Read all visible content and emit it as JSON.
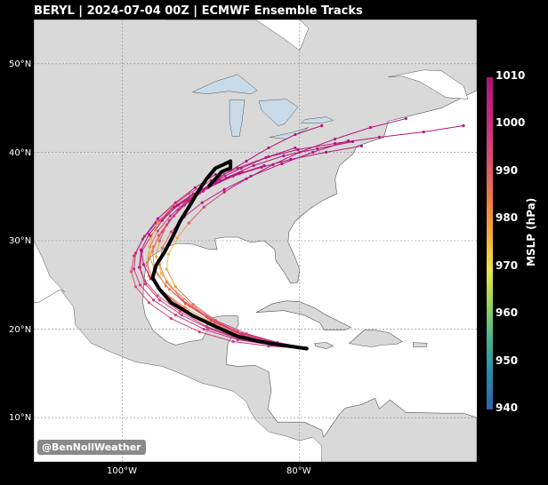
{
  "title": "BERYL | 2024-07-04 00Z | ECMWF Ensemble Tracks",
  "watermark": "@BenNollWeather",
  "lat_labels": [
    "50°N",
    "40°N",
    "30°N",
    "20°N",
    "10°N"
  ],
  "lon_labels": [
    "100°W",
    "80°W"
  ],
  "colorbar": {
    "title": "MSLP (hPa)",
    "ticks": [
      "1010",
      "1000",
      "990",
      "980",
      "970",
      "960",
      "950",
      "940"
    ],
    "min": 940,
    "max": 1010
  },
  "colors": {
    "land": "#d9d9d9",
    "ocean": "#ffffff",
    "border": "#555555",
    "mean_track": "#000000",
    "weak_track": "#b3127a",
    "strong_track": "#f1d04a"
  },
  "map_extent": {
    "lon": [
      -110,
      -60
    ],
    "lat": [
      5,
      55
    ]
  },
  "mean_track": [
    [
      -79.2,
      17.8
    ],
    [
      -82,
      18.2
    ],
    [
      -84.5,
      18.6
    ],
    [
      -87,
      19.2
    ],
    [
      -89.5,
      20.3
    ],
    [
      -92,
      21.5
    ],
    [
      -94.5,
      23
    ],
    [
      -95.8,
      24.5
    ],
    [
      -96.6,
      25.8
    ],
    [
      -96.2,
      27.2
    ],
    [
      -95.2,
      28.8
    ],
    [
      -94.3,
      30.5
    ],
    [
      -93.5,
      32.2
    ],
    [
      -92.5,
      33.8
    ],
    [
      -91.5,
      35.5
    ],
    [
      -90.5,
      37
    ],
    [
      -89.5,
      38.2
    ],
    [
      -88.6,
      38.6
    ],
    [
      -87.8,
      39
    ],
    [
      -87.8,
      38.2
    ],
    [
      -88.8,
      37.8
    ],
    [
      -90.2,
      36.2
    ]
  ],
  "ensemble_tracks": [
    [
      [
        -79.3,
        17.9
      ],
      [
        -83,
        18.4
      ],
      [
        -86.5,
        19.3
      ],
      [
        -90,
        20.8
      ],
      [
        -93,
        22.5
      ],
      [
        -95.5,
        24.3
      ],
      [
        -97,
        26
      ],
      [
        -97.2,
        27.5
      ],
      [
        -96.5,
        29.3
      ],
      [
        -95.5,
        31
      ],
      [
        -94.2,
        32.8
      ],
      [
        -92.5,
        34.5
      ],
      [
        -90.5,
        36
      ],
      [
        -88.5,
        37.5
      ],
      [
        -86,
        39
      ],
      [
        -83.5,
        40.5
      ],
      [
        -80.5,
        42
      ],
      [
        -77.5,
        43
      ]
    ],
    [
      [
        -79.3,
        17.8
      ],
      [
        -83.5,
        18.3
      ],
      [
        -87,
        19
      ],
      [
        -90.5,
        20.3
      ],
      [
        -93.5,
        22
      ],
      [
        -96,
        23.8
      ],
      [
        -97.5,
        25.5
      ],
      [
        -98,
        27
      ],
      [
        -97.8,
        28.8
      ],
      [
        -96.8,
        30.5
      ],
      [
        -95.5,
        32.3
      ],
      [
        -93.8,
        34
      ],
      [
        -91.5,
        35.5
      ],
      [
        -89,
        36.8
      ],
      [
        -86.5,
        37.8
      ]
    ],
    [
      [
        -79.4,
        17.9
      ],
      [
        -82.5,
        18.5
      ],
      [
        -86,
        19.5
      ],
      [
        -89.5,
        21
      ],
      [
        -92,
        22.8
      ],
      [
        -94,
        24.8
      ],
      [
        -95,
        26.8
      ],
      [
        -94.8,
        28.5
      ],
      [
        -93.8,
        30.3
      ],
      [
        -92.5,
        32
      ],
      [
        -90.8,
        33.8
      ],
      [
        -88.5,
        35.5
      ],
      [
        -86,
        37
      ],
      [
        -83,
        38.6
      ],
      [
        -80,
        40
      ],
      [
        -76,
        41.5
      ],
      [
        -72,
        42.8
      ],
      [
        -68,
        43.8
      ]
    ],
    [
      [
        -79.3,
        17.8
      ],
      [
        -83,
        18.2
      ],
      [
        -87,
        18.8
      ],
      [
        -90.8,
        20
      ],
      [
        -94,
        21.6
      ],
      [
        -96.5,
        23.3
      ],
      [
        -98,
        25
      ],
      [
        -98.7,
        26.8
      ],
      [
        -98.5,
        28.6
      ],
      [
        -97.5,
        30.5
      ],
      [
        -96,
        32.5
      ],
      [
        -94,
        34.3
      ],
      [
        -91.8,
        36
      ],
      [
        -89.5,
        37.5
      ]
    ],
    [
      [
        -79.3,
        17.8
      ],
      [
        -82.8,
        18.4
      ],
      [
        -86.4,
        19.2
      ],
      [
        -89.8,
        20.7
      ],
      [
        -92.8,
        22.4
      ],
      [
        -95.2,
        24
      ],
      [
        -96.8,
        25.7
      ],
      [
        -97.6,
        27.3
      ],
      [
        -97.9,
        29
      ]
    ],
    [
      [
        -79.3,
        17.9
      ],
      [
        -83.2,
        18.6
      ],
      [
        -87,
        19.7
      ],
      [
        -90.5,
        21.4
      ],
      [
        -93.2,
        23.3
      ],
      [
        -95,
        25.3
      ],
      [
        -95.8,
        27.3
      ],
      [
        -95.5,
        29.2
      ],
      [
        -94.5,
        31
      ],
      [
        -93,
        32.7
      ],
      [
        -91,
        34.3
      ],
      [
        -88.5,
        35.8
      ],
      [
        -85.5,
        37.3
      ],
      [
        -82,
        38.7
      ],
      [
        -78.5,
        40
      ],
      [
        -74.5,
        41.3
      ]
    ],
    [
      [
        -79.3,
        17.8
      ],
      [
        -83.5,
        18.1
      ],
      [
        -87.5,
        18.6
      ],
      [
        -91.3,
        19.7
      ],
      [
        -94.5,
        21.2
      ],
      [
        -97,
        23
      ],
      [
        -98.5,
        24.8
      ],
      [
        -99,
        26.5
      ],
      [
        -98.7,
        28.3
      ],
      [
        -97.7,
        30.2
      ],
      [
        -96.2,
        32
      ],
      [
        -94.2,
        33.8
      ],
      [
        -92,
        35.3
      ],
      [
        -89.5,
        36.6
      ],
      [
        -86.8,
        37.6
      ],
      [
        -84,
        38.5
      ]
    ],
    [
      [
        -79.3,
        17.8
      ],
      [
        -82.5,
        18.3
      ],
      [
        -85.8,
        19.1
      ],
      [
        -89,
        20.6
      ],
      [
        -91.8,
        22.4
      ],
      [
        -94,
        24.3
      ],
      [
        -95.6,
        26.3
      ],
      [
        -96.2,
        28.2
      ],
      [
        -95.8,
        30
      ],
      [
        -95,
        31.8
      ],
      [
        -93.7,
        33.5
      ],
      [
        -91.8,
        35.2
      ],
      [
        -89.4,
        36.8
      ],
      [
        -86.6,
        38.2
      ],
      [
        -83.5,
        39.5
      ],
      [
        -80.5,
        40.5
      ]
    ],
    [
      [
        -79.3,
        17.9
      ],
      [
        -83,
        18.5
      ],
      [
        -86.5,
        19.5
      ],
      [
        -90,
        21
      ],
      [
        -92.9,
        22.9
      ],
      [
        -95.1,
        24.9
      ],
      [
        -96.4,
        26.9
      ],
      [
        -96.6,
        28.8
      ],
      [
        -95.9,
        30.6
      ],
      [
        -94.7,
        32.3
      ],
      [
        -93,
        34
      ],
      [
        -90.9,
        35.6
      ],
      [
        -88.3,
        37.1
      ],
      [
        -85.2,
        38.5
      ],
      [
        -81.8,
        39.6
      ],
      [
        -78,
        40.4
      ],
      [
        -74,
        41.2
      ]
    ],
    [
      [
        -79.3,
        17.8
      ],
      [
        -83.2,
        18.2
      ],
      [
        -86.9,
        18.9
      ],
      [
        -90.3,
        20.1
      ],
      [
        -93.3,
        21.6
      ],
      [
        -95.8,
        23.3
      ],
      [
        -97.4,
        25.1
      ],
      [
        -98.1,
        27
      ],
      [
        -97.9,
        28.9
      ],
      [
        -97,
        30.7
      ],
      [
        -95.6,
        32.4
      ],
      [
        -93.7,
        34
      ],
      [
        -91.3,
        35.4
      ]
    ],
    [
      [
        -79.3,
        17.8
      ],
      [
        -82.8,
        18.3
      ],
      [
        -86.2,
        19
      ],
      [
        -89.6,
        20.4
      ],
      [
        -92.6,
        22
      ],
      [
        -95,
        23.8
      ],
      [
        -96.6,
        25.6
      ],
      [
        -97.2,
        27.5
      ],
      [
        -96.9,
        29.3
      ],
      [
        -96,
        31.1
      ],
      [
        -94.6,
        32.8
      ],
      [
        -92.7,
        34.5
      ],
      [
        -90.3,
        36
      ],
      [
        -87.5,
        37.3
      ],
      [
        -84.3,
        38.3
      ],
      [
        -81,
        39.2
      ],
      [
        -77,
        40
      ],
      [
        -73,
        40.7
      ]
    ],
    [
      [
        -79.3,
        17.8
      ],
      [
        -82.9,
        18.4
      ],
      [
        -86.3,
        19.3
      ],
      [
        -89.6,
        20.8
      ],
      [
        -92.4,
        22.6
      ],
      [
        -94.7,
        24.5
      ],
      [
        -96.3,
        26.5
      ],
      [
        -97,
        28.4
      ],
      [
        -96.8,
        30.2
      ],
      [
        -96,
        32
      ],
      [
        -94.6,
        33.7
      ],
      [
        -92.5,
        35.3
      ],
      [
        -90,
        36.8
      ],
      [
        -87,
        38.2
      ],
      [
        -83.8,
        39.4
      ],
      [
        -80.2,
        40.3
      ],
      [
        -76,
        41
      ],
      [
        -71,
        41.7
      ],
      [
        -66,
        42.3
      ],
      [
        -61.5,
        43
      ]
    ]
  ],
  "ensemble_track_pressure_min": [
    985,
    990,
    980,
    995,
    975,
    985,
    990,
    980,
    985,
    995,
    985,
    980
  ]
}
